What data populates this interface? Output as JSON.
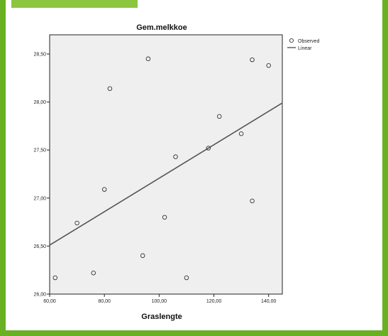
{
  "colors": {
    "frame_border": "#6ab023",
    "accent_tab": "#8cc63f",
    "plot_bg": "#efefef",
    "line": "#555555",
    "marker": "#333333"
  },
  "chart_data": {
    "type": "scatter",
    "title": "Gem.melkkoe",
    "xlabel": "Graslengte",
    "ylabel": "",
    "xlim": [
      60,
      145
    ],
    "ylim": [
      26.0,
      28.7
    ],
    "xticks": [
      60,
      80,
      100,
      120,
      140
    ],
    "yticks": [
      26.0,
      26.5,
      27.0,
      27.5,
      28.0,
      28.5
    ],
    "xtick_labels": [
      "60,00",
      "80,00",
      "100,00",
      "120,00",
      "140,00"
    ],
    "ytick_labels": [
      "26,00",
      "26,50",
      "27,00",
      "27,50",
      "28,00",
      "28,50"
    ],
    "grid": false,
    "legend_position": "top-right",
    "series": [
      {
        "name": "Observed",
        "kind": "points",
        "x": [
          62,
          70,
          76,
          80,
          82,
          94,
          96,
          102,
          106,
          110,
          118,
          122,
          130,
          134,
          134,
          140
        ],
        "y": [
          26.17,
          26.74,
          26.22,
          27.09,
          28.14,
          26.4,
          28.45,
          26.8,
          27.43,
          26.17,
          27.52,
          27.85,
          27.67,
          26.97,
          28.44,
          28.38
        ]
      },
      {
        "name": "Linear",
        "kind": "line",
        "x": [
          60,
          145
        ],
        "y": [
          26.51,
          27.99
        ]
      }
    ]
  }
}
